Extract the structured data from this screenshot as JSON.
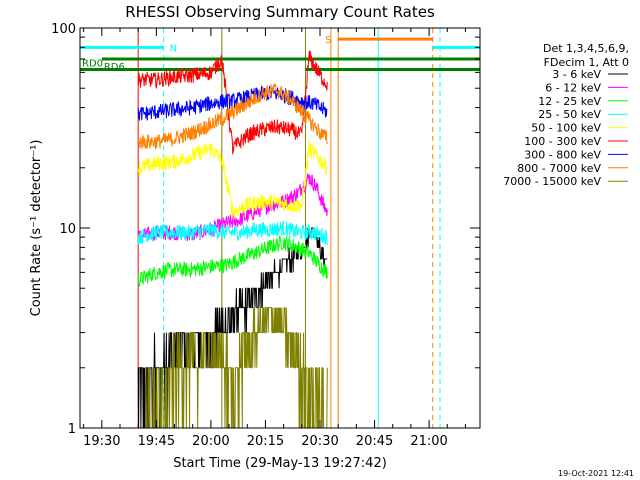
{
  "chart_data": {
    "type": "line",
    "title": "RHESSI Observing Summary Count Rates",
    "xlabel": "Start Time (29-May-13 19:27:42)",
    "ylabel": "Count Rate (s⁻¹ detector⁻¹)",
    "y_scale": "log",
    "ylim": [
      1,
      100
    ],
    "xlim": [
      "19:24",
      "21:14"
    ],
    "y_ticks": [
      {
        "value": 1,
        "label": "1"
      },
      {
        "value": 10,
        "label": "10"
      },
      {
        "value": 100,
        "label": "100"
      }
    ],
    "x_ticks": [
      {
        "value": "19:30",
        "label": "19:30"
      },
      {
        "value": "19:45",
        "label": "19:45"
      },
      {
        "value": "20:00",
        "label": "20:00"
      },
      {
        "value": "20:15",
        "label": "20:15"
      },
      {
        "value": "20:30",
        "label": "20:30"
      },
      {
        "value": "20:45",
        "label": "20:45"
      },
      {
        "value": "21:00",
        "label": "21:00"
      }
    ],
    "legend": {
      "position": "right",
      "header": [
        "Det 1,3,4,5,6,9,",
        "FDecim 1, Att 0"
      ]
    },
    "data_window": [
      "19:40",
      "20:32"
    ],
    "series": [
      {
        "name": "3 - 6 keV",
        "color": "#000000",
        "points": [
          [
            "19:40",
            1.3
          ],
          [
            "19:44",
            1.7
          ],
          [
            "19:48",
            2.3
          ],
          [
            "19:52",
            2.5
          ],
          [
            "19:56",
            2.6
          ],
          [
            "20:00",
            2.8
          ],
          [
            "20:03",
            3.1
          ],
          [
            "20:06",
            3.6
          ],
          [
            "20:10",
            4.2
          ],
          [
            "20:14",
            5.0
          ],
          [
            "20:18",
            6.0
          ],
          [
            "20:22",
            7.0
          ],
          [
            "20:25",
            8.0
          ],
          [
            "20:28",
            10.0
          ],
          [
            "20:30",
            8.0
          ],
          [
            "20:32",
            6.5
          ]
        ]
      },
      {
        "name": "6 - 12 keV",
        "color": "#ff00ff",
        "points": [
          [
            "19:40",
            9.0
          ],
          [
            "19:45",
            9.5
          ],
          [
            "19:50",
            9.5
          ],
          [
            "19:55",
            9.3
          ],
          [
            "20:00",
            9.8
          ],
          [
            "20:04",
            10.5
          ],
          [
            "20:08",
            11.0
          ],
          [
            "20:12",
            12.0
          ],
          [
            "20:16",
            13.0
          ],
          [
            "20:20",
            13.5
          ],
          [
            "20:24",
            15.0
          ],
          [
            "20:27",
            18.0
          ],
          [
            "20:29",
            16.0
          ],
          [
            "20:31",
            13.0
          ],
          [
            "20:32",
            12.0
          ]
        ]
      },
      {
        "name": "12 - 25 keV",
        "color": "#00ff00",
        "points": [
          [
            "19:40",
            5.5
          ],
          [
            "19:45",
            6.0
          ],
          [
            "19:50",
            6.2
          ],
          [
            "19:55",
            6.2
          ],
          [
            "20:00",
            6.4
          ],
          [
            "20:04",
            6.5
          ],
          [
            "20:08",
            7.0
          ],
          [
            "20:12",
            7.5
          ],
          [
            "20:16",
            8.0
          ],
          [
            "20:20",
            8.5
          ],
          [
            "20:24",
            8.0
          ],
          [
            "20:27",
            7.5
          ],
          [
            "20:30",
            6.5
          ],
          [
            "20:32",
            6.0
          ]
        ]
      },
      {
        "name": "25 - 50 keV",
        "color": "#00ffff",
        "points": [
          [
            "19:40",
            9.0
          ],
          [
            "19:45",
            9.5
          ],
          [
            "19:50",
            9.5
          ],
          [
            "19:55",
            9.5
          ],
          [
            "20:00",
            9.8
          ],
          [
            "20:04",
            9.5
          ],
          [
            "20:08",
            9.5
          ],
          [
            "20:12",
            9.8
          ],
          [
            "20:16",
            9.8
          ],
          [
            "20:20",
            10.0
          ],
          [
            "20:24",
            9.5
          ],
          [
            "20:28",
            9.5
          ],
          [
            "20:32",
            9.0
          ]
        ]
      },
      {
        "name": "50 - 100 keV",
        "color": "#ffff00",
        "points": [
          [
            "19:40",
            20.0
          ],
          [
            "19:45",
            21.0
          ],
          [
            "19:50",
            21.5
          ],
          [
            "19:55",
            23.0
          ],
          [
            "20:00",
            25.0
          ],
          [
            "20:03",
            22.0
          ],
          [
            "20:06",
            12.0
          ],
          [
            "20:10",
            13.0
          ],
          [
            "20:14",
            13.5
          ],
          [
            "20:18",
            13.5
          ],
          [
            "20:22",
            13.0
          ],
          [
            "20:25",
            13.0
          ],
          [
            "20:27",
            25.0
          ],
          [
            "20:30",
            22.0
          ],
          [
            "20:32",
            20.0
          ]
        ]
      },
      {
        "name": "100 - 300 keV",
        "color": "#ff0000",
        "points": [
          [
            "19:40",
            55.0
          ],
          [
            "19:45",
            55.0
          ],
          [
            "19:50",
            57.0
          ],
          [
            "19:55",
            58.0
          ],
          [
            "20:00",
            60.0
          ],
          [
            "20:03",
            70.0
          ],
          [
            "20:06",
            25.0
          ],
          [
            "20:10",
            29.0
          ],
          [
            "20:14",
            31.0
          ],
          [
            "20:18",
            32.0
          ],
          [
            "20:22",
            31.0
          ],
          [
            "20:25",
            29.0
          ],
          [
            "20:27",
            72.0
          ],
          [
            "20:30",
            58.0
          ],
          [
            "20:32",
            52.0
          ]
        ]
      },
      {
        "name": "300 - 800 keV",
        "color": "#0000ff",
        "points": [
          [
            "19:40",
            37.0
          ],
          [
            "19:45",
            38.0
          ],
          [
            "19:50",
            39.0
          ],
          [
            "19:55",
            40.0
          ],
          [
            "20:00",
            42.0
          ],
          [
            "20:03",
            43.0
          ],
          [
            "20:06",
            43.0
          ],
          [
            "20:10",
            45.0
          ],
          [
            "20:14",
            47.0
          ],
          [
            "20:18",
            47.0
          ],
          [
            "20:22",
            45.0
          ],
          [
            "20:25",
            43.0
          ],
          [
            "20:28",
            42.0
          ],
          [
            "20:30",
            40.0
          ],
          [
            "20:32",
            38.0
          ]
        ]
      },
      {
        "name": "800 - 7000 keV",
        "color": "#ff8000",
        "points": [
          [
            "19:40",
            27.0
          ],
          [
            "19:45",
            27.0
          ],
          [
            "19:50",
            28.0
          ],
          [
            "19:55",
            30.0
          ],
          [
            "20:00",
            33.0
          ],
          [
            "20:03",
            35.0
          ],
          [
            "20:06",
            38.0
          ],
          [
            "20:10",
            42.0
          ],
          [
            "20:14",
            47.0
          ],
          [
            "20:18",
            49.0
          ],
          [
            "20:22",
            44.0
          ],
          [
            "20:25",
            38.0
          ],
          [
            "20:28",
            33.0
          ],
          [
            "20:30",
            30.0
          ],
          [
            "20:32",
            28.0
          ]
        ]
      },
      {
        "name": "7000 - 15000 keV",
        "color": "#808000",
        "points": [
          [
            "19:40",
            1.0
          ],
          [
            "19:44",
            1.0
          ],
          [
            "19:46",
            1.1
          ],
          [
            "19:50",
            2.0
          ],
          [
            "19:55",
            2.2
          ],
          [
            "20:00",
            2.4
          ],
          [
            "20:03",
            2.2
          ],
          [
            "20:06",
            1.6
          ],
          [
            "20:10",
            2.6
          ],
          [
            "20:14",
            3.3
          ],
          [
            "20:18",
            3.6
          ],
          [
            "20:22",
            2.6
          ],
          [
            "20:26",
            1.8
          ],
          [
            "20:30",
            1.3
          ],
          [
            "20:32",
            1.1
          ]
        ]
      }
    ],
    "annotations": {
      "rd0": {
        "label": "RD0",
        "color": "#008000",
        "value": 62,
        "start": "19:24",
        "end": "21:14",
        "gap": [
          "20:03",
          "20:26"
        ]
      },
      "rd6": {
        "label": "RD6",
        "color": "#008000",
        "value": 70,
        "start": "19:30",
        "end": "21:14"
      },
      "night": {
        "label": "N",
        "color": "#00ffff",
        "value": 80,
        "segments": [
          [
            "19:24",
            "19:47"
          ],
          [
            "21:01",
            "21:14"
          ]
        ]
      },
      "saa": {
        "label": "S",
        "color": "#ff8000",
        "value": 88,
        "start": "20:35",
        "end": "21:01"
      },
      "vlines": [
        {
          "time": "19:24",
          "color": "#00ffff",
          "style": "solid"
        },
        {
          "time": "19:40",
          "color": "#ff0000",
          "style": "solid"
        },
        {
          "time": "19:47",
          "color": "#00ffff",
          "style": "dashed"
        },
        {
          "time": "20:03",
          "color": "#808000",
          "style": "solid"
        },
        {
          "time": "20:26",
          "color": "#808000",
          "style": "solid"
        },
        {
          "time": "20:33",
          "color": "#ff8000",
          "style": "solid"
        },
        {
          "time": "20:35",
          "color": "#ff8000",
          "style": "solid"
        },
        {
          "time": "20:46",
          "color": "#00ffff",
          "style": "solid"
        },
        {
          "time": "21:01",
          "color": "#ff8000",
          "style": "dashed"
        },
        {
          "time": "21:03",
          "color": "#00ffff",
          "style": "dashed"
        }
      ]
    },
    "timestamp": "19-Oct-2021 12:41"
  }
}
